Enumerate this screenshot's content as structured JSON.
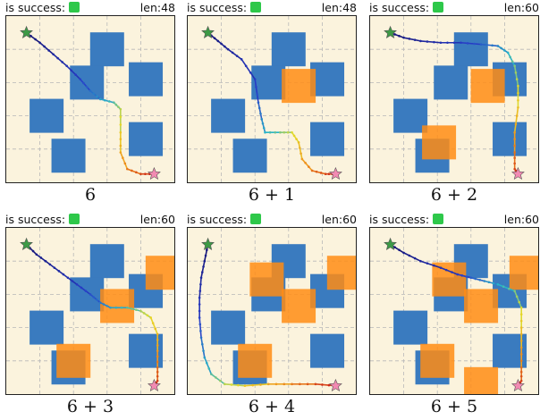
{
  "colors": {
    "obstacle": "#3a7bbf",
    "new_obstacle": "#ff8c14",
    "success": "#2ec84a",
    "background": "#fbf3dd",
    "start_star": "#3d9a46",
    "goal_star": "#f28ab2"
  },
  "panels": [
    {
      "success_label": "is success:",
      "len_label": "len:48",
      "caption": "6",
      "obstacles": [
        [
          0.24,
          0.4
        ],
        [
          0.6,
          0.8
        ],
        [
          0.48,
          0.6
        ],
        [
          0.83,
          0.62
        ],
        [
          0.83,
          0.26
        ],
        [
          0.37,
          0.16
        ]
      ],
      "new_obstacles": [],
      "path": [
        [
          0.12,
          0.9
        ],
        [
          0.2,
          0.84
        ],
        [
          0.28,
          0.77
        ],
        [
          0.36,
          0.7
        ],
        [
          0.44,
          0.62
        ],
        [
          0.5,
          0.55
        ],
        [
          0.56,
          0.5
        ],
        [
          0.64,
          0.48
        ],
        [
          0.68,
          0.44
        ],
        [
          0.68,
          0.3
        ],
        [
          0.68,
          0.18
        ],
        [
          0.72,
          0.08
        ],
        [
          0.8,
          0.05
        ],
        [
          0.88,
          0.05
        ]
      ]
    },
    {
      "success_label": "is success:",
      "len_label": "len:48",
      "caption": "6 + 1",
      "obstacles": [
        [
          0.24,
          0.4
        ],
        [
          0.6,
          0.8
        ],
        [
          0.48,
          0.6
        ],
        [
          0.83,
          0.62
        ],
        [
          0.83,
          0.26
        ],
        [
          0.37,
          0.16
        ]
      ],
      "new_obstacles": [
        [
          0.66,
          0.58
        ]
      ],
      "path": [
        [
          0.12,
          0.9
        ],
        [
          0.18,
          0.85
        ],
        [
          0.24,
          0.8
        ],
        [
          0.32,
          0.74
        ],
        [
          0.4,
          0.62
        ],
        [
          0.42,
          0.48
        ],
        [
          0.44,
          0.38
        ],
        [
          0.46,
          0.3
        ],
        [
          0.55,
          0.3
        ],
        [
          0.62,
          0.3
        ],
        [
          0.66,
          0.24
        ],
        [
          0.68,
          0.14
        ],
        [
          0.74,
          0.07
        ],
        [
          0.82,
          0.05
        ],
        [
          0.88,
          0.05
        ]
      ]
    },
    {
      "success_label": "is success:",
      "len_label": "len:60",
      "caption": "6 + 2",
      "obstacles": [
        [
          0.24,
          0.4
        ],
        [
          0.6,
          0.8
        ],
        [
          0.48,
          0.6
        ],
        [
          0.83,
          0.62
        ],
        [
          0.83,
          0.26
        ],
        [
          0.37,
          0.16
        ]
      ],
      "new_obstacles": [
        [
          0.7,
          0.58
        ],
        [
          0.41,
          0.24
        ]
      ],
      "path": [
        [
          0.12,
          0.9
        ],
        [
          0.2,
          0.87
        ],
        [
          0.3,
          0.85
        ],
        [
          0.42,
          0.84
        ],
        [
          0.54,
          0.84
        ],
        [
          0.66,
          0.83
        ],
        [
          0.76,
          0.82
        ],
        [
          0.82,
          0.78
        ],
        [
          0.86,
          0.7
        ],
        [
          0.88,
          0.58
        ],
        [
          0.88,
          0.45
        ],
        [
          0.86,
          0.3
        ],
        [
          0.86,
          0.18
        ],
        [
          0.86,
          0.08
        ],
        [
          0.88,
          0.05
        ]
      ]
    },
    {
      "success_label": "is success:",
      "len_label": "len:60",
      "caption": "6 + 3",
      "obstacles": [
        [
          0.24,
          0.4
        ],
        [
          0.6,
          0.8
        ],
        [
          0.48,
          0.6
        ],
        [
          0.83,
          0.62
        ],
        [
          0.83,
          0.26
        ],
        [
          0.37,
          0.16
        ]
      ],
      "new_obstacles": [
        [
          0.93,
          0.73
        ],
        [
          0.66,
          0.53
        ],
        [
          0.4,
          0.2
        ]
      ],
      "path": [
        [
          0.12,
          0.9
        ],
        [
          0.18,
          0.84
        ],
        [
          0.26,
          0.78
        ],
        [
          0.34,
          0.72
        ],
        [
          0.42,
          0.66
        ],
        [
          0.5,
          0.6
        ],
        [
          0.56,
          0.55
        ],
        [
          0.62,
          0.52
        ],
        [
          0.72,
          0.52
        ],
        [
          0.8,
          0.5
        ],
        [
          0.86,
          0.46
        ],
        [
          0.9,
          0.36
        ],
        [
          0.9,
          0.26
        ],
        [
          0.9,
          0.16
        ],
        [
          0.9,
          0.08
        ],
        [
          0.88,
          0.05
        ]
      ]
    },
    {
      "success_label": "is success:",
      "len_label": "len:60",
      "caption": "6 + 4",
      "obstacles": [
        [
          0.24,
          0.4
        ],
        [
          0.6,
          0.8
        ],
        [
          0.48,
          0.6
        ],
        [
          0.83,
          0.62
        ],
        [
          0.83,
          0.26
        ],
        [
          0.37,
          0.16
        ]
      ],
      "new_obstacles": [
        [
          0.93,
          0.73
        ],
        [
          0.66,
          0.53
        ],
        [
          0.4,
          0.2
        ],
        [
          0.47,
          0.69
        ]
      ],
      "path": [
        [
          0.12,
          0.9
        ],
        [
          0.1,
          0.8
        ],
        [
          0.08,
          0.7
        ],
        [
          0.07,
          0.58
        ],
        [
          0.07,
          0.46
        ],
        [
          0.08,
          0.34
        ],
        [
          0.1,
          0.22
        ],
        [
          0.14,
          0.12
        ],
        [
          0.22,
          0.06
        ],
        [
          0.34,
          0.05
        ],
        [
          0.48,
          0.06
        ],
        [
          0.62,
          0.06
        ],
        [
          0.76,
          0.06
        ],
        [
          0.88,
          0.05
        ]
      ]
    },
    {
      "success_label": "is success:",
      "len_label": "len:60",
      "caption": "6 + 5",
      "obstacles": [
        [
          0.24,
          0.4
        ],
        [
          0.6,
          0.8
        ],
        [
          0.48,
          0.6
        ],
        [
          0.83,
          0.62
        ],
        [
          0.83,
          0.26
        ],
        [
          0.37,
          0.16
        ]
      ],
      "new_obstacles": [
        [
          0.93,
          0.73
        ],
        [
          0.66,
          0.53
        ],
        [
          0.4,
          0.2
        ],
        [
          0.47,
          0.69
        ],
        [
          0.66,
          0.06
        ]
      ],
      "path": [
        [
          0.12,
          0.9
        ],
        [
          0.2,
          0.85
        ],
        [
          0.3,
          0.8
        ],
        [
          0.42,
          0.76
        ],
        [
          0.52,
          0.72
        ],
        [
          0.6,
          0.7
        ],
        [
          0.68,
          0.68
        ],
        [
          0.76,
          0.66
        ],
        [
          0.86,
          0.62
        ],
        [
          0.9,
          0.52
        ],
        [
          0.9,
          0.4
        ],
        [
          0.9,
          0.28
        ],
        [
          0.9,
          0.16
        ],
        [
          0.9,
          0.08
        ],
        [
          0.88,
          0.05
        ]
      ]
    }
  ]
}
